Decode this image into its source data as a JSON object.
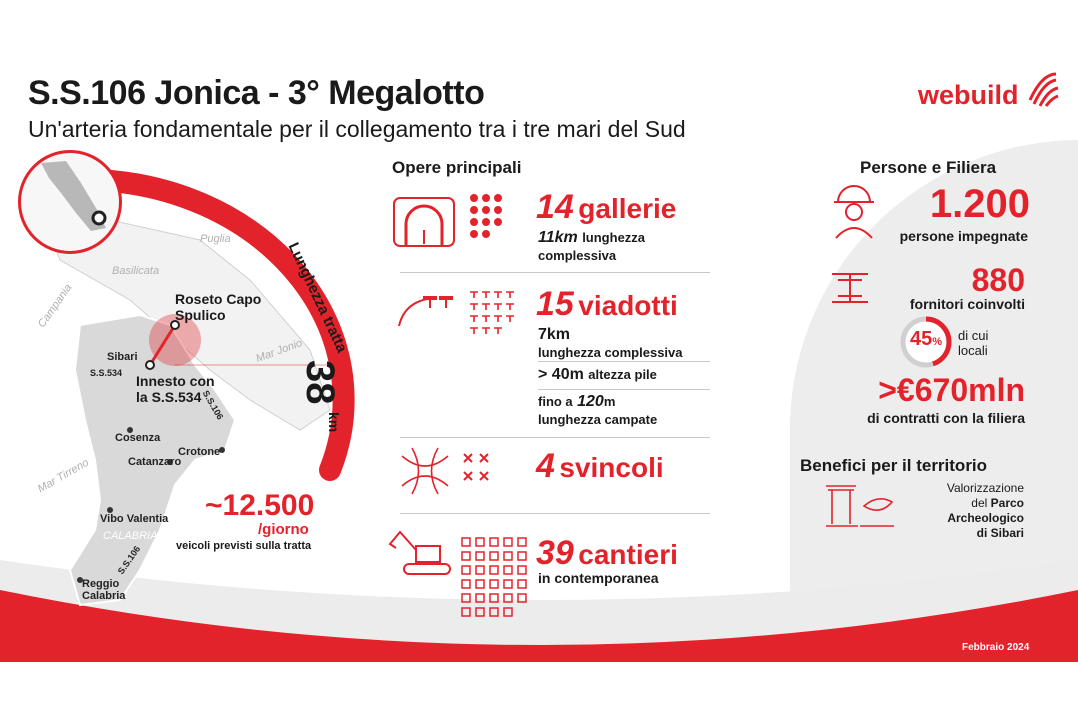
{
  "header": {
    "title": "S.S.106 Jonica - 3° Megalotto",
    "subtitle": "Un'arteria fondamentale per il collegamento tra i tre mari del Sud",
    "logo": "webuild"
  },
  "map": {
    "length_label": "Lunghezza tratta",
    "length_value": "38",
    "length_unit": "km",
    "endpoint_top": "Roseto Capo Spulico",
    "endpoint_bottom": "Innesto con la S.S.534",
    "cities": [
      "Sibari",
      "Cosenza",
      "Crotone",
      "Catanzaro",
      "Vibo Valentia",
      "Reggio Calabria"
    ],
    "roads": [
      "S.S.534",
      "S.S.106",
      "S.S.106"
    ],
    "regions": [
      "Puglia",
      "Basilicata",
      "Campania",
      "Mar Jonio",
      "Mar Tirreno",
      "CALABRIA"
    ],
    "traffic_value": "~12.500",
    "traffic_unit": "/giorno",
    "traffic_note": "veicoli previsti sulla tratta"
  },
  "works": {
    "heading": "Opere principali",
    "gallerie": {
      "num": "14",
      "label": "gallerie",
      "detail_num": "11km",
      "detail_a": "lunghezza",
      "detail_b": "complessiva"
    },
    "viadotti": {
      "num": "15",
      "label": "viadotti",
      "detail1_num": "7km",
      "detail1_text": "lunghezza complessiva",
      "detail2_num": "> 40m",
      "detail2_text": "altezza pile",
      "detail3_a": "fino a",
      "detail3_num": "120",
      "detail3_unit": "m",
      "detail3_text": "lunghezza campate"
    },
    "svincoli": {
      "num": "4",
      "label": "svincoli"
    },
    "cantieri": {
      "num": "39",
      "label": "cantieri",
      "detail": "in contemporanea"
    }
  },
  "people": {
    "heading": "Persone e Filiera",
    "persone_num": "1.200",
    "persone_label": "persone impegnate",
    "fornitori_num": "880",
    "fornitori_label": "fornitori coinvolti",
    "local_pct": "45",
    "local_pct_sign": "%",
    "local_pct_fraction": 0.45,
    "local_label_a": "di cui",
    "local_label_b": "locali",
    "contratti_num": ">€670mln",
    "contratti_label": "di contratti con la filiera"
  },
  "benefits": {
    "heading": "Benefici per il territorio",
    "line1": "Valorizzazione",
    "line2_a": "del",
    "line2_b": "Parco",
    "line3": "Archeologico",
    "line4": "di Sibari"
  },
  "footer": {
    "date": "Febbraio 2024"
  },
  "colors": {
    "accent": "#e3232b",
    "grey": "#ededed"
  }
}
